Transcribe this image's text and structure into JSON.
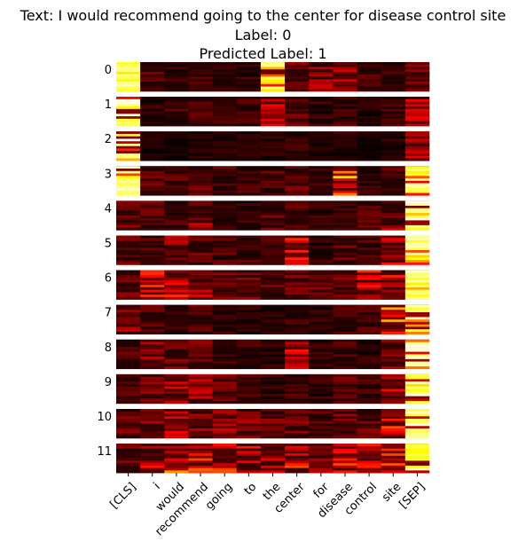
{
  "title": {
    "text_line": "Text: I would recommend going to the center for disease control site",
    "label_line": "Label: 0",
    "predicted_line": "Predicted Label: 1"
  },
  "chart_data": {
    "type": "heatmap",
    "colormap": "hot",
    "title": "Text: I would recommend going to the center for disease control site\nLabel: 0\nPredicted Label: 1",
    "panels": [
      "0",
      "1",
      "2",
      "3",
      "4",
      "5",
      "6",
      "7",
      "8",
      "9",
      "10",
      "11"
    ],
    "tokens": [
      "[CLS]",
      "i",
      "would",
      "recommend",
      "going",
      "to",
      "the",
      "center",
      "for",
      "disease",
      "control",
      "site",
      "[SEP]"
    ],
    "heads_per_panel": 12,
    "attention_peak": [
      [
        0.95,
        0.18,
        0.12,
        0.15,
        0.1,
        0.12,
        0.9,
        0.22,
        0.3,
        0.35,
        0.14,
        0.12,
        0.3
      ],
      [
        0.98,
        0.1,
        0.15,
        0.16,
        0.12,
        0.14,
        0.4,
        0.22,
        0.12,
        0.16,
        0.1,
        0.15,
        0.4
      ],
      [
        1.0,
        0.06,
        0.08,
        0.08,
        0.1,
        0.08,
        0.1,
        0.12,
        0.08,
        0.1,
        0.06,
        0.1,
        0.35
      ],
      [
        0.95,
        0.2,
        0.22,
        0.2,
        0.16,
        0.15,
        0.18,
        0.2,
        0.12,
        0.7,
        0.12,
        0.2,
        0.92
      ],
      [
        0.25,
        0.2,
        0.18,
        0.3,
        0.15,
        0.12,
        0.2,
        0.18,
        0.12,
        0.22,
        0.2,
        0.3,
        1.0
      ],
      [
        0.22,
        0.18,
        0.3,
        0.22,
        0.18,
        0.16,
        0.15,
        0.5,
        0.12,
        0.2,
        0.16,
        0.4,
        1.0
      ],
      [
        0.25,
        0.45,
        0.45,
        0.4,
        0.3,
        0.25,
        0.2,
        0.22,
        0.22,
        0.22,
        0.5,
        0.5,
        0.98
      ],
      [
        0.3,
        0.18,
        0.16,
        0.15,
        0.12,
        0.1,
        0.1,
        0.12,
        0.1,
        0.14,
        0.15,
        0.65,
        1.0
      ],
      [
        0.18,
        0.35,
        0.25,
        0.22,
        0.15,
        0.12,
        0.12,
        0.45,
        0.1,
        0.15,
        0.12,
        0.3,
        1.0
      ],
      [
        0.2,
        0.25,
        0.4,
        0.35,
        0.22,
        0.15,
        0.12,
        0.15,
        0.12,
        0.18,
        0.15,
        0.38,
        1.0
      ],
      [
        0.22,
        0.35,
        0.45,
        0.3,
        0.3,
        0.35,
        0.22,
        0.25,
        0.18,
        0.25,
        0.22,
        0.55,
        0.98
      ],
      [
        0.25,
        0.4,
        0.65,
        0.55,
        0.5,
        0.45,
        0.4,
        0.5,
        0.3,
        0.5,
        0.45,
        0.75,
        0.95
      ]
    ]
  }
}
